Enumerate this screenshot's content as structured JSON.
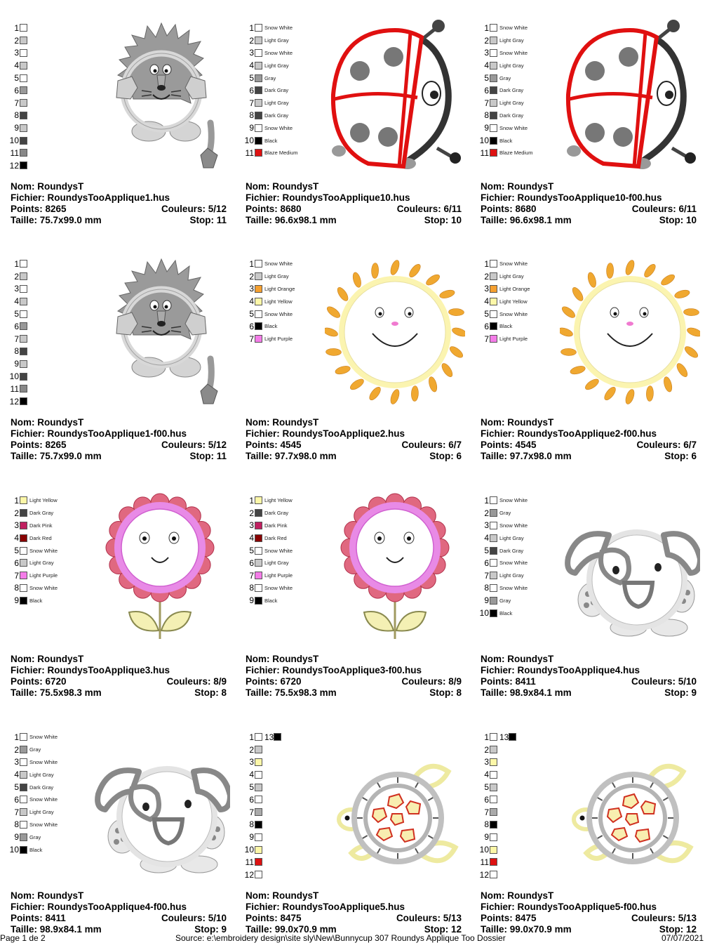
{
  "labels": {
    "nom": "Nom:",
    "fichier": "Fichier:",
    "points": "Points:",
    "couleurs": "Couleurs:",
    "taille": "Taille:",
    "stop": "Stop:"
  },
  "designs": [
    {
      "art": "lion",
      "nom": "RoundysT",
      "fichier": "RoundysTooApplique1.hus",
      "points": "8265",
      "couleurs": "5/12",
      "taille": "75.7x99.0 mm",
      "stop": "11",
      "colors": [
        {
          "n": "1",
          "hex": "#ffffff",
          "name": ""
        },
        {
          "n": "2",
          "hex": "#c8c8c8",
          "name": ""
        },
        {
          "n": "3",
          "hex": "#ffffff",
          "name": ""
        },
        {
          "n": "4",
          "hex": "#c8c8c8",
          "name": ""
        },
        {
          "n": "5",
          "hex": "#ffffff",
          "name": ""
        },
        {
          "n": "6",
          "hex": "#999999",
          "name": ""
        },
        {
          "n": "7",
          "hex": "#c8c8c8",
          "name": ""
        },
        {
          "n": "8",
          "hex": "#444444",
          "name": ""
        },
        {
          "n": "9",
          "hex": "#c8c8c8",
          "name": ""
        },
        {
          "n": "10",
          "hex": "#444444",
          "name": ""
        },
        {
          "n": "11",
          "hex": "#888888",
          "name": ""
        },
        {
          "n": "12",
          "hex": "#000000",
          "name": ""
        }
      ]
    },
    {
      "art": "ladybug",
      "nom": "RoundysT",
      "fichier": "RoundysTooApplique10.hus",
      "points": "8680",
      "couleurs": "6/11",
      "taille": "96.6x98.1 mm",
      "stop": "10",
      "colors": [
        {
          "n": "1",
          "hex": "#ffffff",
          "name": "Snow White"
        },
        {
          "n": "2",
          "hex": "#c8c8c8",
          "name": "Light Gray"
        },
        {
          "n": "3",
          "hex": "#ffffff",
          "name": "Snow White"
        },
        {
          "n": "4",
          "hex": "#c8c8c8",
          "name": "Light Gray"
        },
        {
          "n": "5",
          "hex": "#999999",
          "name": "Gray"
        },
        {
          "n": "6",
          "hex": "#444444",
          "name": "Dark Gray"
        },
        {
          "n": "7",
          "hex": "#c8c8c8",
          "name": "Light Gray"
        },
        {
          "n": "8",
          "hex": "#444444",
          "name": "Dark Gray"
        },
        {
          "n": "9",
          "hex": "#ffffff",
          "name": "Snow White"
        },
        {
          "n": "10",
          "hex": "#000000",
          "name": "Black"
        },
        {
          "n": "11",
          "hex": "#dd1111",
          "name": "Blaze Medium"
        }
      ]
    },
    {
      "art": "ladybug",
      "nom": "RoundysT",
      "fichier": "RoundysTooApplique10-f00.hus",
      "points": "8680",
      "couleurs": "6/11",
      "taille": "96.6x98.1 mm",
      "stop": "10",
      "colors": [
        {
          "n": "1",
          "hex": "#ffffff",
          "name": "Snow White"
        },
        {
          "n": "2",
          "hex": "#c8c8c8",
          "name": "Light Gray"
        },
        {
          "n": "3",
          "hex": "#ffffff",
          "name": "Snow White"
        },
        {
          "n": "4",
          "hex": "#c8c8c8",
          "name": "Light Gray"
        },
        {
          "n": "5",
          "hex": "#999999",
          "name": "Gray"
        },
        {
          "n": "6",
          "hex": "#444444",
          "name": "Dark Gray"
        },
        {
          "n": "7",
          "hex": "#c8c8c8",
          "name": "Light Gray"
        },
        {
          "n": "8",
          "hex": "#444444",
          "name": "Dark Gray"
        },
        {
          "n": "9",
          "hex": "#ffffff",
          "name": "Snow White"
        },
        {
          "n": "10",
          "hex": "#000000",
          "name": "Black"
        },
        {
          "n": "11",
          "hex": "#dd1111",
          "name": "Blaze Medium"
        }
      ]
    },
    {
      "art": "lion",
      "nom": "RoundysT",
      "fichier": "RoundysTooApplique1-f00.hus",
      "points": "8265",
      "couleurs": "5/12",
      "taille": "75.7x99.0 mm",
      "stop": "11",
      "colors": [
        {
          "n": "1",
          "hex": "#ffffff",
          "name": ""
        },
        {
          "n": "2",
          "hex": "#c8c8c8",
          "name": ""
        },
        {
          "n": "3",
          "hex": "#ffffff",
          "name": ""
        },
        {
          "n": "4",
          "hex": "#c8c8c8",
          "name": ""
        },
        {
          "n": "5",
          "hex": "#ffffff",
          "name": ""
        },
        {
          "n": "6",
          "hex": "#999999",
          "name": ""
        },
        {
          "n": "7",
          "hex": "#c8c8c8",
          "name": ""
        },
        {
          "n": "8",
          "hex": "#444444",
          "name": ""
        },
        {
          "n": "9",
          "hex": "#c8c8c8",
          "name": ""
        },
        {
          "n": "10",
          "hex": "#444444",
          "name": ""
        },
        {
          "n": "11",
          "hex": "#888888",
          "name": ""
        },
        {
          "n": "12",
          "hex": "#000000",
          "name": ""
        }
      ]
    },
    {
      "art": "sun",
      "nom": "RoundysT",
      "fichier": "RoundysTooApplique2.hus",
      "points": "4545",
      "couleurs": "6/7",
      "taille": "97.7x98.0 mm",
      "stop": "6",
      "colors": [
        {
          "n": "1",
          "hex": "#ffffff",
          "name": "Snow White"
        },
        {
          "n": "2",
          "hex": "#c8c8c8",
          "name": "Light Gray"
        },
        {
          "n": "3",
          "hex": "#f5a030",
          "name": "Light Orange"
        },
        {
          "n": "4",
          "hex": "#fdf7a8",
          "name": "Light Yellow"
        },
        {
          "n": "5",
          "hex": "#ffffff",
          "name": "Snow White"
        },
        {
          "n": "6",
          "hex": "#000000",
          "name": "Black"
        },
        {
          "n": "7",
          "hex": "#f47ce8",
          "name": "Light Purple"
        }
      ]
    },
    {
      "art": "sun",
      "nom": "RoundysT",
      "fichier": "RoundysTooApplique2-f00.hus",
      "points": "4545",
      "couleurs": "6/7",
      "taille": "97.7x98.0 mm",
      "stop": "6",
      "colors": [
        {
          "n": "1",
          "hex": "#ffffff",
          "name": "Snow White"
        },
        {
          "n": "2",
          "hex": "#c8c8c8",
          "name": "Light Gray"
        },
        {
          "n": "3",
          "hex": "#f5a030",
          "name": "Light Orange"
        },
        {
          "n": "4",
          "hex": "#fdf7a8",
          "name": "Light Yellow"
        },
        {
          "n": "5",
          "hex": "#ffffff",
          "name": "Snow White"
        },
        {
          "n": "6",
          "hex": "#000000",
          "name": "Black"
        },
        {
          "n": "7",
          "hex": "#f47ce8",
          "name": "Light Purple"
        }
      ]
    },
    {
      "art": "flower",
      "nom": "RoundysT",
      "fichier": "RoundysTooApplique3.hus",
      "points": "6720",
      "couleurs": "8/9",
      "taille": "75.5x98.3 mm",
      "stop": "8",
      "colors": [
        {
          "n": "1",
          "hex": "#fdf7a8",
          "name": "Light Yellow"
        },
        {
          "n": "2",
          "hex": "#444444",
          "name": "Dark Gray"
        },
        {
          "n": "3",
          "hex": "#c02060",
          "name": "Dark Pink"
        },
        {
          "n": "4",
          "hex": "#880000",
          "name": "Dark Red"
        },
        {
          "n": "5",
          "hex": "#ffffff",
          "name": "Snow White"
        },
        {
          "n": "6",
          "hex": "#c8c8c8",
          "name": "Light Gray"
        },
        {
          "n": "7",
          "hex": "#f47ce8",
          "name": "Light Purple"
        },
        {
          "n": "8",
          "hex": "#ffffff",
          "name": "Snow White"
        },
        {
          "n": "9",
          "hex": "#000000",
          "name": "Black"
        }
      ]
    },
    {
      "art": "flower",
      "nom": "RoundysT",
      "fichier": "RoundysTooApplique3-f00.hus",
      "points": "6720",
      "couleurs": "8/9",
      "taille": "75.5x98.3 mm",
      "stop": "8",
      "colors": [
        {
          "n": "1",
          "hex": "#fdf7a8",
          "name": "Light Yellow"
        },
        {
          "n": "2",
          "hex": "#444444",
          "name": "Dark Gray"
        },
        {
          "n": "3",
          "hex": "#c02060",
          "name": "Dark Pink"
        },
        {
          "n": "4",
          "hex": "#880000",
          "name": "Dark Red"
        },
        {
          "n": "5",
          "hex": "#ffffff",
          "name": "Snow White"
        },
        {
          "n": "6",
          "hex": "#c8c8c8",
          "name": "Light Gray"
        },
        {
          "n": "7",
          "hex": "#f47ce8",
          "name": "Light Purple"
        },
        {
          "n": "8",
          "hex": "#ffffff",
          "name": "Snow White"
        },
        {
          "n": "9",
          "hex": "#000000",
          "name": "Black"
        }
      ]
    },
    {
      "art": "dog",
      "nom": "RoundysT",
      "fichier": "RoundysTooApplique4.hus",
      "points": "8411",
      "couleurs": "5/10",
      "taille": "98.9x84.1 mm",
      "stop": "9",
      "colors": [
        {
          "n": "1",
          "hex": "#ffffff",
          "name": "Snow White"
        },
        {
          "n": "2",
          "hex": "#999999",
          "name": "Gray"
        },
        {
          "n": "3",
          "hex": "#ffffff",
          "name": "Snow White"
        },
        {
          "n": "4",
          "hex": "#c8c8c8",
          "name": "Light Gray"
        },
        {
          "n": "5",
          "hex": "#444444",
          "name": "Dark Gray"
        },
        {
          "n": "6",
          "hex": "#ffffff",
          "name": "Snow White"
        },
        {
          "n": "7",
          "hex": "#c8c8c8",
          "name": "Light Gray"
        },
        {
          "n": "8",
          "hex": "#ffffff",
          "name": "Snow White"
        },
        {
          "n": "9",
          "hex": "#999999",
          "name": "Gray"
        },
        {
          "n": "10",
          "hex": "#000000",
          "name": "Black"
        }
      ]
    },
    {
      "art": "dog",
      "nom": "RoundysT",
      "fichier": "RoundysTooApplique4-f00.hus",
      "points": "8411",
      "couleurs": "5/10",
      "taille": "98.9x84.1 mm",
      "stop": "9",
      "colors": [
        {
          "n": "1",
          "hex": "#ffffff",
          "name": "Snow White"
        },
        {
          "n": "2",
          "hex": "#999999",
          "name": "Gray"
        },
        {
          "n": "3",
          "hex": "#ffffff",
          "name": "Snow White"
        },
        {
          "n": "4",
          "hex": "#c8c8c8",
          "name": "Light Gray"
        },
        {
          "n": "5",
          "hex": "#444444",
          "name": "Dark Gray"
        },
        {
          "n": "6",
          "hex": "#ffffff",
          "name": "Snow White"
        },
        {
          "n": "7",
          "hex": "#c8c8c8",
          "name": "Light Gray"
        },
        {
          "n": "8",
          "hex": "#ffffff",
          "name": "Snow White"
        },
        {
          "n": "9",
          "hex": "#999999",
          "name": "Gray"
        },
        {
          "n": "10",
          "hex": "#000000",
          "name": "Black"
        }
      ]
    },
    {
      "art": "turtle",
      "nom": "RoundysT",
      "fichier": "RoundysTooApplique5.hus",
      "points": "8475",
      "couleurs": "5/13",
      "taille": "99.0x70.9 mm",
      "stop": "12",
      "colors": [
        {
          "n": "1",
          "hex": "#ffffff",
          "name": "",
          "extra_n": "13",
          "extra_hex": "#000000"
        },
        {
          "n": "2",
          "hex": "#c8c8c8",
          "name": ""
        },
        {
          "n": "3",
          "hex": "#fdf7a8",
          "name": ""
        },
        {
          "n": "4",
          "hex": "#ffffff",
          "name": ""
        },
        {
          "n": "5",
          "hex": "#c8c8c8",
          "name": ""
        },
        {
          "n": "6",
          "hex": "#ffffff",
          "name": ""
        },
        {
          "n": "7",
          "hex": "#aaaaaa",
          "name": ""
        },
        {
          "n": "8",
          "hex": "#000000",
          "name": ""
        },
        {
          "n": "9",
          "hex": "#ffffff",
          "name": ""
        },
        {
          "n": "10",
          "hex": "#fdf7a8",
          "name": ""
        },
        {
          "n": "11",
          "hex": "#dd1111",
          "name": ""
        },
        {
          "n": "12",
          "hex": "#ffffff",
          "name": ""
        }
      ]
    },
    {
      "art": "turtle",
      "nom": "RoundysT",
      "fichier": "RoundysTooApplique5-f00.hus",
      "points": "8475",
      "couleurs": "5/13",
      "taille": "99.0x70.9 mm",
      "stop": "12",
      "colors": [
        {
          "n": "1",
          "hex": "#ffffff",
          "name": "",
          "extra_n": "13",
          "extra_hex": "#000000"
        },
        {
          "n": "2",
          "hex": "#c8c8c8",
          "name": ""
        },
        {
          "n": "3",
          "hex": "#fdf7a8",
          "name": ""
        },
        {
          "n": "4",
          "hex": "#ffffff",
          "name": ""
        },
        {
          "n": "5",
          "hex": "#c8c8c8",
          "name": ""
        },
        {
          "n": "6",
          "hex": "#ffffff",
          "name": ""
        },
        {
          "n": "7",
          "hex": "#aaaaaa",
          "name": ""
        },
        {
          "n": "8",
          "hex": "#000000",
          "name": ""
        },
        {
          "n": "9",
          "hex": "#ffffff",
          "name": ""
        },
        {
          "n": "10",
          "hex": "#fdf7a8",
          "name": ""
        },
        {
          "n": "11",
          "hex": "#dd1111",
          "name": ""
        },
        {
          "n": "12",
          "hex": "#ffffff",
          "name": ""
        }
      ]
    }
  ],
  "footer": {
    "page": "Page 1 de 2",
    "source": "Source: e:\\embroidery design\\site sly\\New\\Bunnycup 307 Roundys Applique Too Dossier",
    "date": "07/07/2021"
  }
}
